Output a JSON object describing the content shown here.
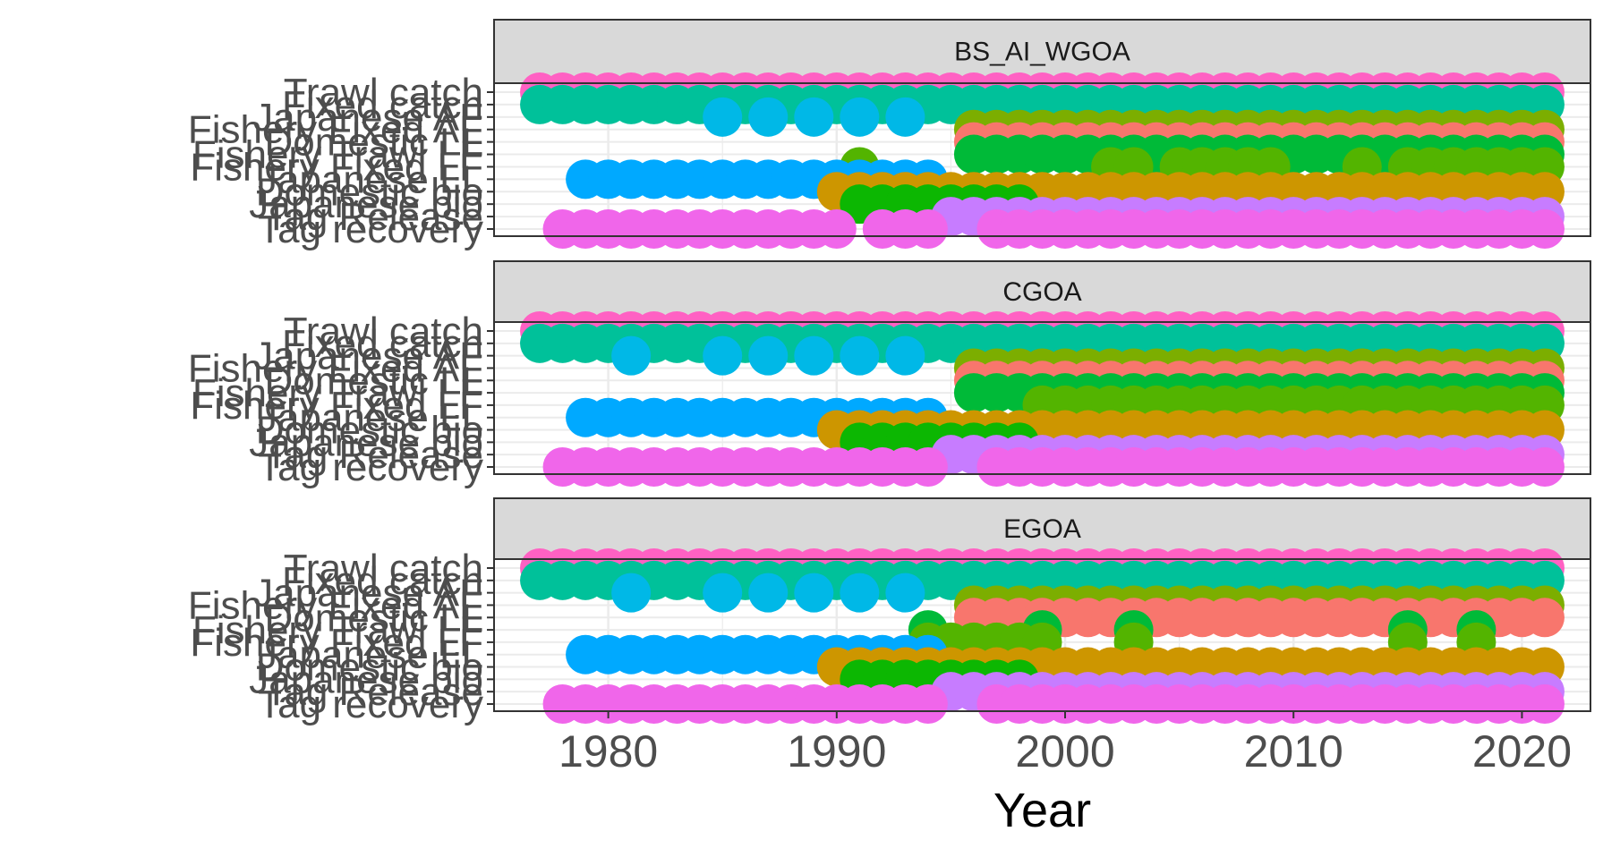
{
  "chart_data": {
    "type": "scatter",
    "xlabel": "Year",
    "ylabel": "",
    "xlim": [
      1975,
      2023
    ],
    "x_ticks": [
      1980,
      1990,
      2000,
      2010,
      2020
    ],
    "grid": true,
    "legend": "none",
    "y_categories": [
      "Trawl catch",
      "Fixed catch",
      "Japanese AF",
      "Fishery Fixed AF",
      "Domestic LL",
      "Fishery Trawl LF",
      "Fishery Fixed LF",
      "Japanese LL",
      "Domestic bio",
      "Japanese bio",
      "Tag Release",
      "Tag recovery"
    ],
    "colors": {
      "Trawl catch": "#FF61C3",
      "Fixed catch": "#00C19A",
      "Japanese AF": "#00B8E7",
      "Fishery Fixed AF": "#7CAE00",
      "Domestic LL": "#F8766D",
      "Fishery Trawl LF": "#00BA38",
      "Fishery Fixed LF": "#53B400",
      "Japanese LL": "#00A9FF",
      "Domestic bio": "#CD9600",
      "Japanese bio": "#0CB702",
      "Tag Release": "#C77CFF",
      "Tag recovery": "#F066EA"
    },
    "panels": [
      {
        "strip": "BS_AI_WGOA",
        "series": [
          {
            "category": "Trawl catch",
            "years": [
              [
                1977,
                2021
              ]
            ]
          },
          {
            "category": "Fixed catch",
            "years": [
              [
                1977,
                2021
              ]
            ]
          },
          {
            "category": "Japanese AF",
            "years": [
              1985,
              1987,
              1989,
              1991,
              1993
            ]
          },
          {
            "category": "Fishery Fixed AF",
            "years": [
              [
                1996,
                2021
              ]
            ]
          },
          {
            "category": "Domestic LL",
            "years": [
              [
                1996,
                2021
              ]
            ]
          },
          {
            "category": "Fishery Trawl LF",
            "years": [
              [
                1996,
                2021
              ]
            ]
          },
          {
            "category": "Fishery Fixed LF",
            "years": [
              1991,
              2002,
              2003,
              2005,
              2006,
              2007,
              2008,
              2009,
              2013,
              2015,
              2016,
              2017,
              2018,
              2019,
              2020,
              2021
            ]
          },
          {
            "category": "Japanese LL",
            "years": [
              [
                1979,
                1994
              ]
            ]
          },
          {
            "category": "Domestic bio",
            "years": [
              [
                1990,
                2021
              ]
            ]
          },
          {
            "category": "Japanese bio",
            "years": [
              [
                1991,
                1998
              ]
            ]
          },
          {
            "category": "Tag Release",
            "years": [
              1995,
              1996,
              [
                1997,
                2021
              ]
            ]
          },
          {
            "category": "Tag recovery",
            "years": [
              [
                1978,
                1990
              ],
              [
                1992,
                1994
              ],
              [
                1997,
                2021
              ]
            ]
          }
        ]
      },
      {
        "strip": "CGOA",
        "series": [
          {
            "category": "Trawl catch",
            "years": [
              [
                1977,
                2021
              ]
            ]
          },
          {
            "category": "Fixed catch",
            "years": [
              [
                1977,
                2021
              ]
            ]
          },
          {
            "category": "Japanese AF",
            "years": [
              1981,
              1985,
              1987,
              1989,
              1991,
              1993
            ]
          },
          {
            "category": "Fishery Fixed AF",
            "years": [
              [
                1996,
                2021
              ]
            ]
          },
          {
            "category": "Domestic LL",
            "years": [
              [
                1996,
                2021
              ]
            ]
          },
          {
            "category": "Fishery Trawl LF",
            "years": [
              [
                1996,
                2021
              ]
            ]
          },
          {
            "category": "Fishery Fixed LF",
            "years": [
              [
                1999,
                2021
              ]
            ]
          },
          {
            "category": "Japanese LL",
            "years": [
              [
                1979,
                1994
              ]
            ]
          },
          {
            "category": "Domestic bio",
            "years": [
              [
                1990,
                2021
              ]
            ]
          },
          {
            "category": "Japanese bio",
            "years": [
              [
                1991,
                1998
              ]
            ]
          },
          {
            "category": "Tag Release",
            "years": [
              1995,
              1996,
              [
                1997,
                2021
              ]
            ]
          },
          {
            "category": "Tag recovery",
            "years": [
              [
                1978,
                1994
              ],
              [
                1997,
                2021
              ]
            ]
          }
        ]
      },
      {
        "strip": "EGOA",
        "series": [
          {
            "category": "Trawl catch",
            "years": [
              [
                1977,
                2021
              ]
            ]
          },
          {
            "category": "Fixed catch",
            "years": [
              [
                1977,
                2021
              ]
            ]
          },
          {
            "category": "Japanese AF",
            "years": [
              1981,
              1985,
              1987,
              1989,
              1991,
              1993
            ]
          },
          {
            "category": "Fishery Fixed AF",
            "years": [
              [
                1996,
                2021
              ]
            ]
          },
          {
            "category": "Domestic LL",
            "years": [
              [
                1996,
                2021
              ]
            ]
          },
          {
            "category": "Fishery Trawl LF",
            "years": [
              1994,
              1999,
              2003,
              2015,
              2018
            ]
          },
          {
            "category": "Fishery Fixed LF",
            "years": [
              1994,
              1995,
              1996,
              1997,
              1998,
              1999,
              2003,
              2015,
              2018
            ]
          },
          {
            "category": "Japanese LL",
            "years": [
              [
                1979,
                1994
              ]
            ]
          },
          {
            "category": "Domestic bio",
            "years": [
              [
                1990,
                2021
              ]
            ]
          },
          {
            "category": "Japanese bio",
            "years": [
              [
                1991,
                1998
              ]
            ]
          },
          {
            "category": "Tag Release",
            "years": [
              1995,
              1996,
              [
                1997,
                2021
              ]
            ]
          },
          {
            "category": "Tag recovery",
            "years": [
              [
                1978,
                1994
              ],
              [
                1997,
                2021
              ]
            ]
          }
        ]
      }
    ]
  }
}
